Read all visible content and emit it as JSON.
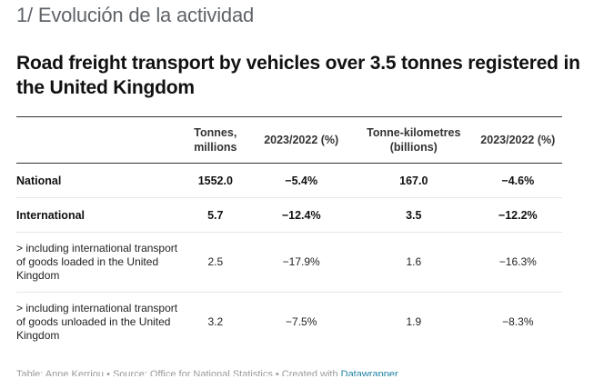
{
  "section_title": "1/ Evolución de la actividad",
  "chart_title": "Road freight transport by vehicles over 3.5 tonnes registered in the United Kingdom",
  "table": {
    "headers": [
      "",
      "Tonnes, millions",
      "2023/2022 (%)",
      "Tonne-kilometres (billions)",
      "2023/2022 (%)"
    ],
    "rows": [
      {
        "label": "National",
        "values": [
          "1552.0",
          "−5.4%",
          "167.0",
          "−4.6%"
        ]
      },
      {
        "label": "International",
        "values": [
          "5.7",
          "−12.4%",
          "3.5",
          "−12.2%"
        ]
      },
      {
        "label": "> including international transport of goods loaded in the United Kingdom",
        "values": [
          "2.5",
          "−17.9%",
          "1.6",
          "−16.3%"
        ]
      },
      {
        "label": "> including international transport of goods unloaded in the United Kingdom",
        "values": [
          "3.2",
          "−7.5%",
          "1.9",
          "−8.3%"
        ]
      }
    ]
  },
  "footer": {
    "text": "Table: Anne Kerriou • Source: Office for National Statistics • Created with ",
    "link": "Datawrapper"
  }
}
